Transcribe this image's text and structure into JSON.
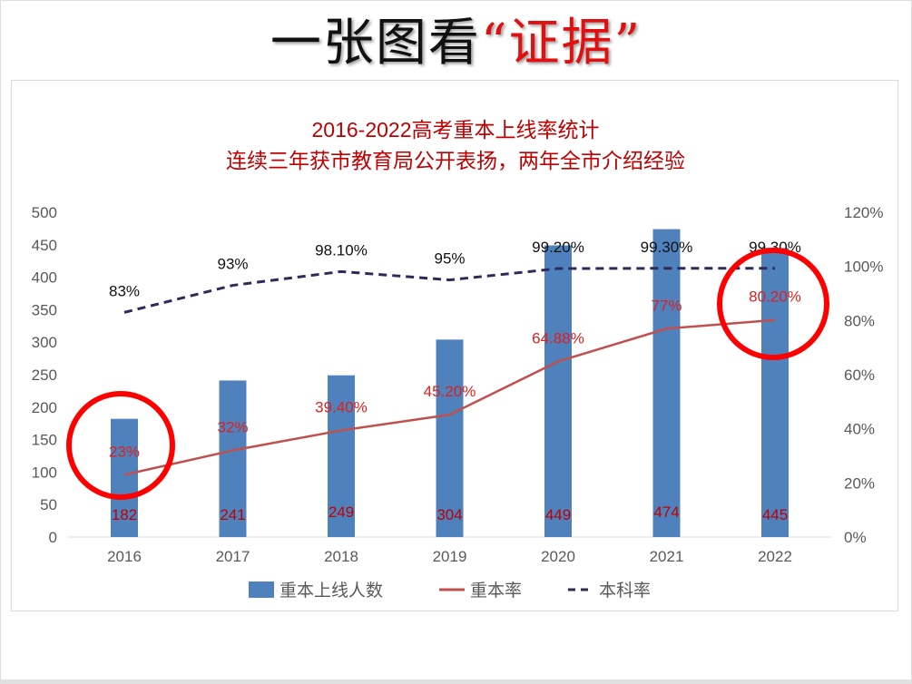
{
  "headline": {
    "black": "一张图看",
    "red": "“证据”"
  },
  "chart_data": {
    "type": "bar+line",
    "title": "2016-2022高考重本上线率统计",
    "subtitle": "连续三年获市教育局公开表扬，两年全市介绍经验",
    "categories": [
      "2016",
      "2017",
      "2018",
      "2019",
      "2020",
      "2021",
      "2022"
    ],
    "left_axis": {
      "range": [
        0,
        500
      ],
      "ticks": [
        "0",
        "50",
        "100",
        "150",
        "200",
        "250",
        "300",
        "350",
        "400",
        "450",
        "500"
      ]
    },
    "right_axis": {
      "range": [
        0,
        120
      ],
      "ticks": [
        "0%",
        "20%",
        "40%",
        "60%",
        "80%",
        "100%",
        "120%"
      ]
    },
    "grid": false,
    "legend_position": "bottom",
    "series": [
      {
        "name": "重本上线人数",
        "type": "bar",
        "axis": "left",
        "color": "#4f81bd",
        "values": [
          182,
          241,
          249,
          304,
          449,
          474,
          445
        ],
        "labels": [
          "182",
          "241",
          "249",
          "304",
          "449",
          "474",
          "445"
        ]
      },
      {
        "name": "重本率",
        "type": "line",
        "axis": "right",
        "color": "#c0504d",
        "values": [
          23,
          32,
          39.4,
          45.2,
          64.88,
          77,
          80.2
        ],
        "labels": [
          "23%",
          "32%",
          "39.40%",
          "45.20%",
          "64.88%",
          "77%",
          "80.20%"
        ]
      },
      {
        "name": "本科率",
        "type": "dashed-line",
        "axis": "right",
        "color": "#2e2a5a",
        "values": [
          83,
          93,
          98.1,
          95,
          99.2,
          99.3,
          99.3
        ],
        "labels": [
          "83%",
          "93%",
          "98.10%",
          "95%",
          "99.20%",
          "99.30%",
          "99.30%"
        ]
      }
    ],
    "annotations": [
      {
        "type": "circle",
        "category": "2016",
        "color": "#ff0000"
      },
      {
        "type": "circle",
        "category": "2022",
        "color": "#ff0000"
      }
    ]
  }
}
